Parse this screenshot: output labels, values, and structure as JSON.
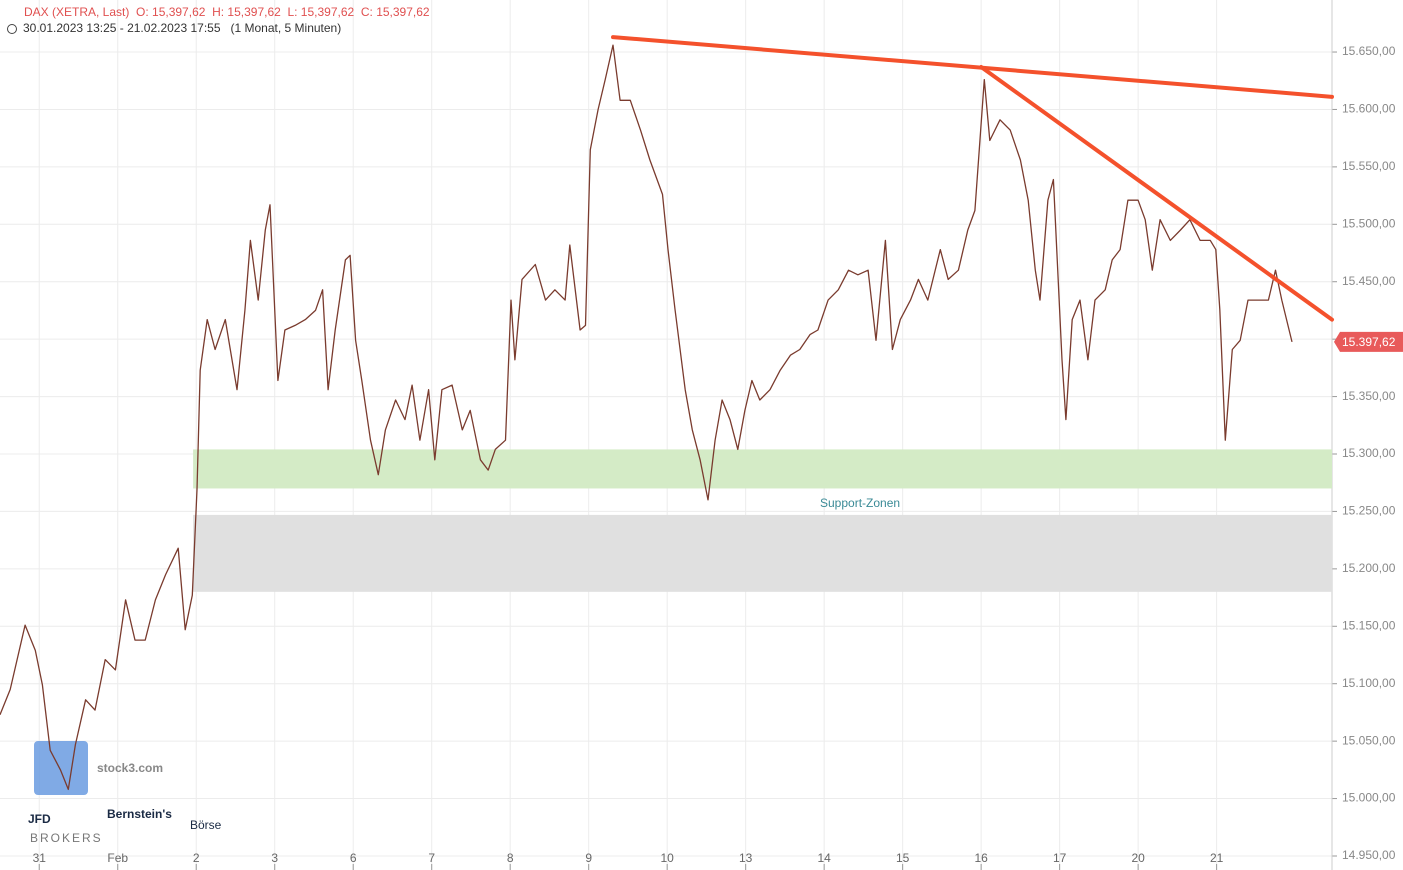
{
  "chart_data": {
    "type": "line",
    "title": "DAX (XETRA, Last)  O: 15,397,62  H: 15,397,62  L: 15,397,62  C: 15,397,62",
    "subtitle": "30.01.2023 13:25 - 21.02.2023 17:55   (1 Monat, 5 Minuten)",
    "annotation": "Support-Zonen",
    "watermarks": [
      "stock3.com",
      "JFD",
      "BROKERS",
      "Bernstein's",
      "Börse"
    ],
    "last_price": {
      "value": 15397.62,
      "label": "15.397,62"
    },
    "grid": true,
    "xlim": [
      -0.5,
      16.47
    ],
    "xticks": [
      {
        "value": 0,
        "label": "31"
      },
      {
        "value": 1,
        "label": "Feb"
      },
      {
        "value": 2,
        "label": "2"
      },
      {
        "value": 3,
        "label": "3"
      },
      {
        "value": 4,
        "label": "6"
      },
      {
        "value": 5,
        "label": "7"
      },
      {
        "value": 6,
        "label": "8"
      },
      {
        "value": 7,
        "label": "9"
      },
      {
        "value": 8,
        "label": "10"
      },
      {
        "value": 9,
        "label": "13"
      },
      {
        "value": 10,
        "label": "14"
      },
      {
        "value": 11,
        "label": "15"
      },
      {
        "value": 12,
        "label": "16"
      },
      {
        "value": 13,
        "label": "17"
      },
      {
        "value": 14,
        "label": "20"
      },
      {
        "value": 15,
        "label": "21"
      }
    ],
    "ylim": [
      14937.8,
      15695.3
    ],
    "yticks": [
      {
        "value": 14950,
        "label": "14.950,00"
      },
      {
        "value": 15000,
        "label": "15.000,00"
      },
      {
        "value": 15050,
        "label": "15.050,00"
      },
      {
        "value": 15100,
        "label": "15.100,00"
      },
      {
        "value": 15150,
        "label": "15.150,00"
      },
      {
        "value": 15200,
        "label": "15.200,00"
      },
      {
        "value": 15250,
        "label": "15.250,00"
      },
      {
        "value": 15300,
        "label": "15.300,00"
      },
      {
        "value": 15350,
        "label": "15.350,00"
      },
      {
        "value": 15400,
        "label": "15.400,00"
      },
      {
        "value": 15450,
        "label": "15.450,00"
      },
      {
        "value": 15500,
        "label": "15.500,00"
      },
      {
        "value": 15550,
        "label": "15.550,00"
      },
      {
        "value": 15600,
        "label": "15.600,00"
      },
      {
        "value": 15650,
        "label": "15.650,00"
      }
    ],
    "bands": [
      {
        "from": 15270,
        "to": 15304,
        "x_start": 1.96,
        "color": "#d4ebc6"
      },
      {
        "from": 15180,
        "to": 15247,
        "x_start": 1.96,
        "color": "#e0e0e0"
      }
    ],
    "trendlines": [
      {
        "x": [
          7.31,
          16.47
        ],
        "y": [
          15663,
          15611
        ],
        "color": "#f4512c"
      },
      {
        "x": [
          12.0,
          16.47
        ],
        "y": [
          15637,
          15417
        ],
        "color": "#f4512c"
      }
    ],
    "x": [
      -0.5,
      -0.37,
      -0.18,
      -0.05,
      0.04,
      0.14,
      0.27,
      0.37,
      0.46,
      0.59,
      0.71,
      0.84,
      0.97,
      1.1,
      1.22,
      1.35,
      1.48,
      1.61,
      1.77,
      1.86,
      1.95,
      2.01,
      2.05,
      2.14,
      2.24,
      2.37,
      2.52,
      2.62,
      2.69,
      2.79,
      2.88,
      2.94,
      3.04,
      3.13,
      3.26,
      3.39,
      3.52,
      3.61,
      3.68,
      3.77,
      3.9,
      3.96,
      4.03,
      4.11,
      4.22,
      4.32,
      4.41,
      4.54,
      4.66,
      4.75,
      4.85,
      4.96,
      5.04,
      5.13,
      5.26,
      5.39,
      5.49,
      5.62,
      5.72,
      5.81,
      5.94,
      6.01,
      6.06,
      6.15,
      6.32,
      6.45,
      6.57,
      6.7,
      6.76,
      6.89,
      6.96,
      7.02,
      7.12,
      7.21,
      7.31,
      7.4,
      7.53,
      7.66,
      7.78,
      7.94,
      8.01,
      8.1,
      8.23,
      8.32,
      8.42,
      8.52,
      8.61,
      8.7,
      8.8,
      8.9,
      8.99,
      9.08,
      9.18,
      9.31,
      9.44,
      9.57,
      9.69,
      9.82,
      9.92,
      10.05,
      10.18,
      10.31,
      10.43,
      10.56,
      10.66,
      10.78,
      10.87,
      10.97,
      11.1,
      11.2,
      11.32,
      11.48,
      11.58,
      11.71,
      11.83,
      11.92,
      12.04,
      12.11,
      12.24,
      12.37,
      12.5,
      12.6,
      12.69,
      12.75,
      12.85,
      12.92,
      13.03,
      13.08,
      13.16,
      13.26,
      13.36,
      13.45,
      13.58,
      13.67,
      13.77,
      13.87,
      14.0,
      14.09,
      14.18,
      14.28,
      14.41,
      14.54,
      14.66,
      14.79,
      14.92,
      14.99,
      15.04,
      15.11,
      15.2,
      15.3,
      15.4,
      15.53,
      15.66,
      15.75,
      15.83,
      15.96
    ],
    "series": [
      {
        "name": "DAX",
        "color": "#7a3b2e",
        "values": [
          15073,
          15095,
          15151,
          15129,
          15099,
          15042,
          15025,
          15008,
          15047,
          15086,
          15077,
          15121,
          15112,
          15173,
          15138,
          15138,
          15173,
          15195,
          15218,
          15147,
          15177,
          15269,
          15373,
          15417,
          15391,
          15417,
          15356,
          15425,
          15486,
          15434,
          15495,
          15517,
          15364,
          15408,
          15412,
          15417,
          15425,
          15443,
          15356,
          15408,
          15469,
          15473,
          15399,
          15364,
          15312,
          15282,
          15321,
          15347,
          15330,
          15360,
          15312,
          15356,
          15295,
          15356,
          15360,
          15321,
          15338,
          15295,
          15286,
          15304,
          15312,
          15434,
          15382,
          15452,
          15465,
          15434,
          15443,
          15434,
          15482,
          15408,
          15412,
          15565,
          15600,
          15626,
          15656,
          15608,
          15608,
          15582,
          15556,
          15526,
          15478,
          15426,
          15356,
          15321,
          15295,
          15260,
          15312,
          15347,
          15330,
          15304,
          15338,
          15364,
          15347,
          15356,
          15373,
          15386,
          15391,
          15404,
          15408,
          15434,
          15443,
          15460,
          15456,
          15460,
          15399,
          15486,
          15391,
          15417,
          15434,
          15452,
          15434,
          15478,
          15452,
          15460,
          15495,
          15512,
          15626,
          15573,
          15591,
          15582,
          15556,
          15521,
          15460,
          15434,
          15521,
          15539,
          15382,
          15330,
          15417,
          15434,
          15382,
          15434,
          15443,
          15469,
          15478,
          15521,
          15521,
          15504,
          15460,
          15504,
          15486,
          15495,
          15504,
          15486,
          15486,
          15478,
          15426,
          15312,
          15391,
          15399,
          15434,
          15434,
          15434,
          15460,
          15434,
          15397.62
        ]
      }
    ]
  }
}
